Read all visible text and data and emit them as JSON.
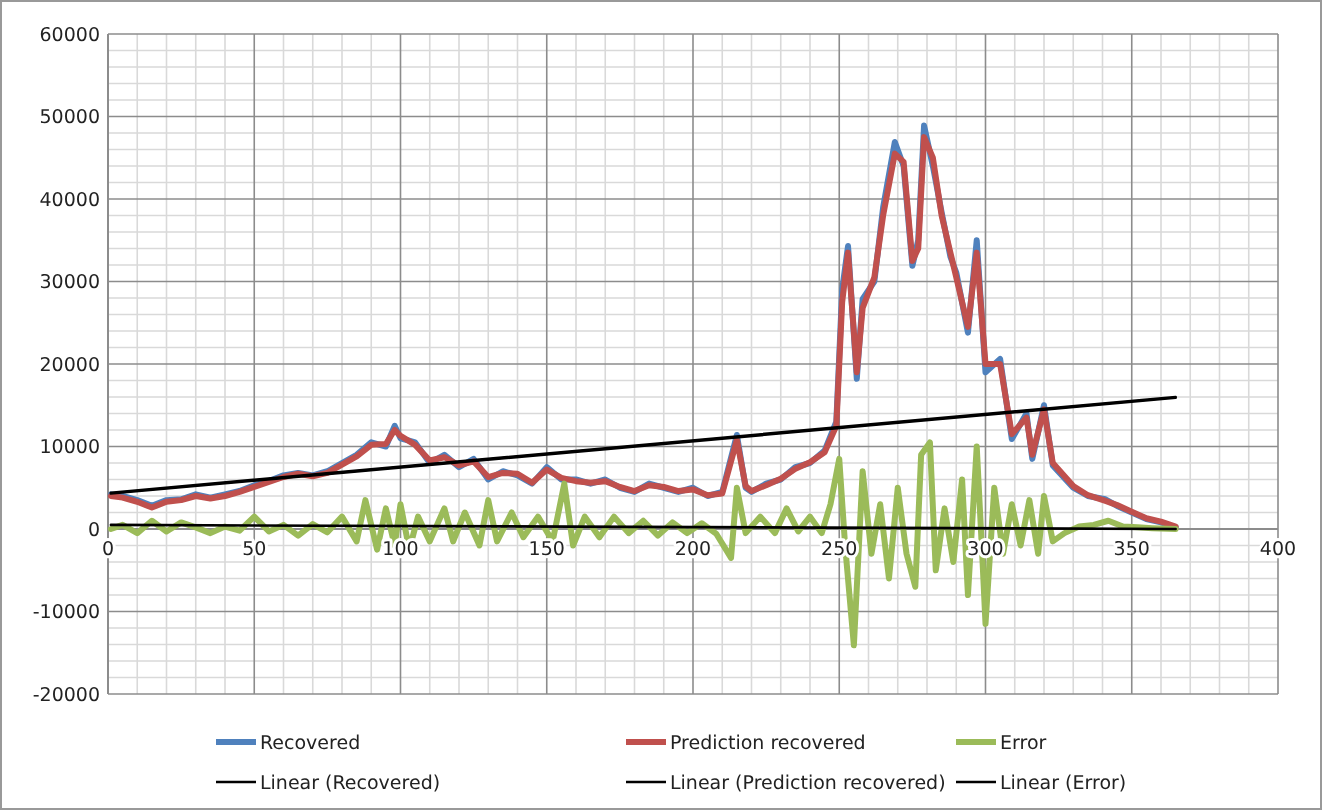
{
  "chart_data": {
    "type": "line",
    "xlim": [
      0,
      400
    ],
    "xticks": [
      0,
      50,
      100,
      150,
      200,
      250,
      300,
      350,
      400
    ],
    "ylim": [
      -20000,
      60000
    ],
    "yticks": [
      -20000,
      -10000,
      0,
      10000,
      20000,
      30000,
      40000,
      50000,
      60000
    ],
    "grid": true,
    "legend": "bottom",
    "marker": "none",
    "line_style": "solid",
    "series": [
      {
        "name": "Recovered",
        "color": "#4f81bd",
        "x": [
          1,
          5,
          10,
          15,
          20,
          25,
          30,
          35,
          40,
          45,
          50,
          55,
          60,
          65,
          70,
          75,
          80,
          85,
          90,
          95,
          98,
          100,
          105,
          110,
          115,
          120,
          125,
          130,
          135,
          140,
          145,
          150,
          155,
          160,
          165,
          170,
          175,
          180,
          185,
          190,
          195,
          200,
          205,
          210,
          215,
          218,
          220,
          225,
          230,
          235,
          240,
          245,
          249,
          251,
          253,
          256,
          258,
          262,
          265,
          269,
          272,
          275,
          277,
          279,
          282,
          285,
          288,
          290,
          294,
          297,
          300,
          305,
          309,
          314,
          316,
          320,
          323,
          330,
          335,
          341,
          345,
          350,
          355,
          360,
          365
        ],
        "values": [
          4200,
          4000,
          3500,
          2800,
          3500,
          3600,
          4200,
          3800,
          4200,
          4600,
          5300,
          5800,
          6500,
          6800,
          6500,
          7000,
          8000,
          9000,
          10500,
          10000,
          12500,
          11000,
          10500,
          8000,
          9000,
          7500,
          8500,
          6000,
          7000,
          6500,
          5500,
          7500,
          6000,
          6000,
          5500,
          6000,
          5000,
          4500,
          5500,
          5000,
          4500,
          5000,
          4000,
          4500,
          11400,
          5000,
          4500,
          5500,
          6000,
          7500,
          8000,
          9500,
          13000,
          29000,
          34300,
          18200,
          27900,
          30000,
          39000,
          46900,
          44000,
          31900,
          35000,
          48900,
          44000,
          38400,
          33000,
          31100,
          23800,
          35000,
          19000,
          20600,
          10900,
          14000,
          8500,
          15000,
          7700,
          5000,
          4000,
          3600,
          2800,
          2000,
          1200,
          800,
          200
        ]
      },
      {
        "name": "Prediction recovered",
        "color": "#c0504d",
        "x": [
          1,
          5,
          10,
          15,
          20,
          25,
          30,
          35,
          40,
          45,
          50,
          55,
          60,
          65,
          70,
          75,
          80,
          85,
          90,
          95,
          98,
          100,
          105,
          110,
          115,
          120,
          125,
          130,
          135,
          140,
          145,
          150,
          155,
          160,
          165,
          170,
          175,
          180,
          185,
          190,
          195,
          200,
          205,
          210,
          215,
          218,
          220,
          225,
          230,
          235,
          240,
          245,
          249,
          251,
          253,
          256,
          258,
          262,
          265,
          269,
          272,
          275,
          277,
          279,
          282,
          285,
          288,
          290,
          294,
          297,
          300,
          305,
          309,
          314,
          316,
          320,
          323,
          330,
          335,
          341,
          345,
          350,
          355,
          360,
          365
        ],
        "values": [
          4000,
          3800,
          3300,
          2600,
          3300,
          3500,
          4000,
          3700,
          4000,
          4500,
          5100,
          5700,
          6300,
          6700,
          6400,
          6800,
          7800,
          8800,
          10200,
          10300,
          12000,
          11300,
          10200,
          8300,
          8700,
          7700,
          8200,
          6300,
          6800,
          6700,
          5600,
          7200,
          6200,
          5800,
          5600,
          5800,
          5100,
          4600,
          5300,
          5100,
          4600,
          4800,
          4100,
          4300,
          10800,
          5200,
          4600,
          5300,
          6100,
          7300,
          8100,
          9300,
          12500,
          27500,
          33500,
          19000,
          26800,
          30500,
          38000,
          45500,
          44500,
          32500,
          34000,
          47500,
          45000,
          38000,
          33500,
          30500,
          24500,
          33500,
          20000,
          20000,
          11500,
          13500,
          9000,
          14500,
          8000,
          5200,
          4100,
          3400,
          2900,
          2100,
          1300,
          900,
          300
        ]
      },
      {
        "name": "Error",
        "color": "#9bbb59",
        "x": [
          1,
          5,
          10,
          15,
          20,
          25,
          30,
          35,
          40,
          45,
          50,
          55,
          60,
          65,
          70,
          75,
          80,
          85,
          88,
          92,
          95,
          98,
          100,
          103,
          106,
          110,
          115,
          118,
          122,
          127,
          130,
          133,
          138,
          142,
          147,
          152,
          156,
          159,
          163,
          168,
          173,
          178,
          183,
          188,
          193,
          198,
          203,
          208,
          213,
          215,
          218,
          223,
          228,
          232,
          236,
          240,
          244,
          247,
          250,
          252,
          255,
          258,
          261,
          264,
          267,
          270,
          273,
          276,
          278,
          281,
          283,
          286,
          289,
          292,
          294,
          297,
          299,
          300,
          303,
          306,
          309,
          312,
          315,
          318,
          320,
          323,
          327,
          332,
          337,
          342,
          347,
          352,
          357,
          365
        ],
        "values": [
          0,
          500,
          -500,
          1000,
          -300,
          800,
          200,
          -500,
          300,
          -200,
          1500,
          -300,
          500,
          -800,
          600,
          -400,
          1500,
          -1500,
          3500,
          -2500,
          2500,
          -2000,
          3000,
          -2500,
          1500,
          -1500,
          2500,
          -1500,
          2000,
          -2000,
          3500,
          -1500,
          2000,
          -1000,
          1500,
          -1500,
          5500,
          -2000,
          1500,
          -1000,
          1500,
          -500,
          1000,
          -800,
          800,
          -500,
          700,
          -600,
          -3500,
          5000,
          -500,
          1500,
          -500,
          2500,
          -300,
          1500,
          -500,
          3000,
          8500,
          -2000,
          -14100,
          7000,
          -3000,
          3000,
          -6000,
          5000,
          -3000,
          -7000,
          9000,
          10500,
          -5000,
          2500,
          -4000,
          6000,
          -8000,
          10000,
          -4000,
          -11500,
          5000,
          -3000,
          3000,
          -2000,
          3500,
          -3000,
          4000,
          -1500,
          -500,
          300,
          500,
          1000,
          300,
          200,
          100,
          0
        ]
      },
      {
        "name": "Linear (Recovered)",
        "color": "#000000",
        "x": [
          1,
          365
        ],
        "values": [
          4400,
          16000
        ]
      },
      {
        "name": "Linear (Prediction recovered)",
        "color": "#000000",
        "x": [
          1,
          365
        ],
        "values": [
          4300,
          15900
        ]
      },
      {
        "name": "Linear (Error)",
        "color": "#000000",
        "x": [
          1,
          365
        ],
        "values": [
          500,
          0
        ]
      }
    ]
  }
}
